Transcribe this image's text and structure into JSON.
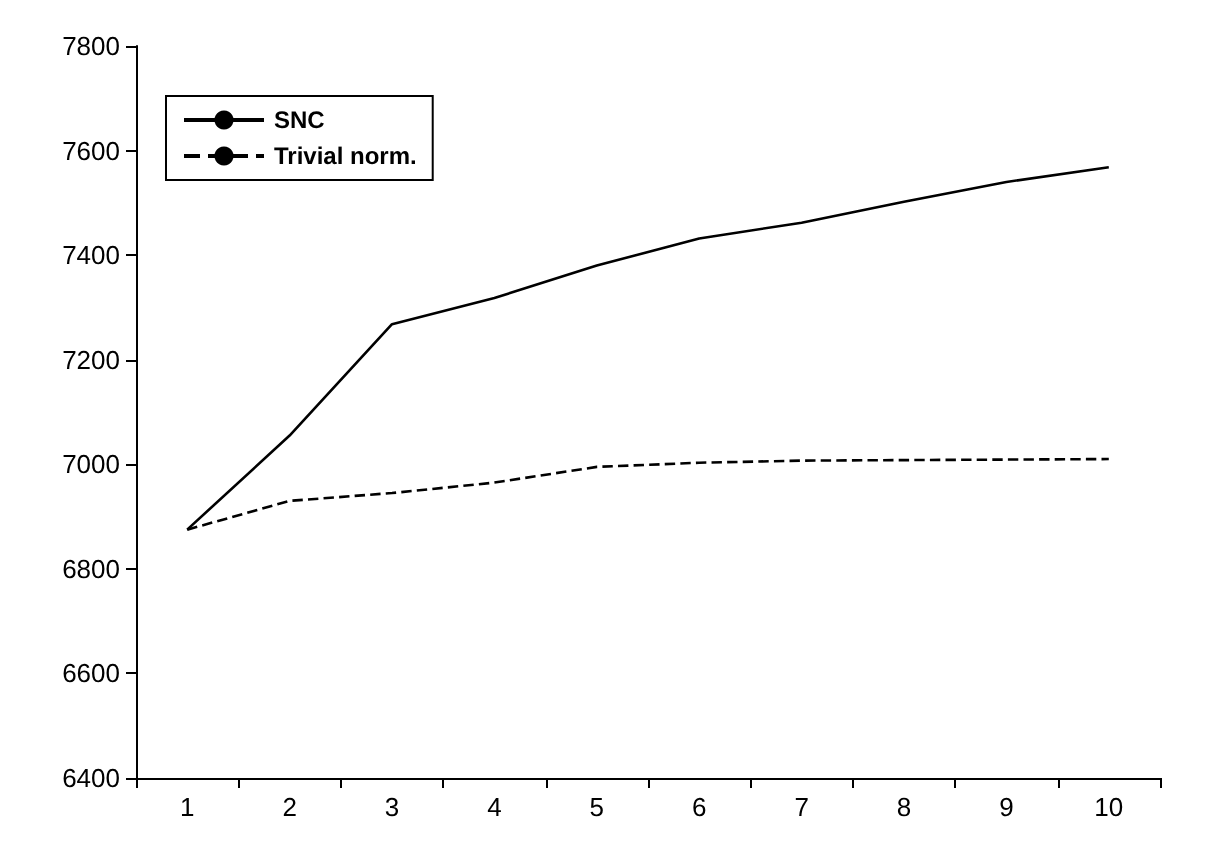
{
  "chart_data": {
    "type": "line",
    "categories": [
      "1",
      "2",
      "3",
      "4",
      "5",
      "6",
      "7",
      "8",
      "9",
      "10"
    ],
    "series": [
      {
        "name": "SNC",
        "color": "#000000",
        "line_style": "solid",
        "values": [
          6875,
          7055,
          7268,
          7318,
          7380,
          7432,
          7462,
          7502,
          7540,
          7568
        ]
      },
      {
        "name": "Trivial norm.",
        "color": "#000000",
        "line_style": "dashed",
        "values": [
          6875,
          6930,
          6945,
          6965,
          6995,
          7003,
          7007,
          7008,
          7009,
          7010
        ]
      }
    ],
    "ylim": [
      6400,
      7800
    ],
    "yticks": [
      6400,
      6600,
      6800,
      7000,
      7200,
      7400,
      7600,
      7800
    ],
    "grid": false,
    "legend": "top left",
    "marker": "none"
  }
}
